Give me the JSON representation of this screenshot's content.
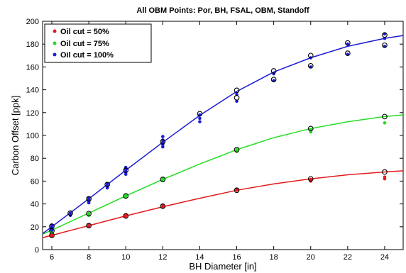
{
  "chart_data": {
    "type": "scatter",
    "title": "All OBM Points: Por, BH, FSAL, OBM, Standoff",
    "xlabel": "BH Diameter [in]",
    "ylabel": "Carbon Offset [ppk]",
    "xlim": [
      5.5,
      25
    ],
    "ylim": [
      0,
      200
    ],
    "xticks": [
      6,
      8,
      10,
      12,
      14,
      16,
      18,
      20,
      22,
      24
    ],
    "yticks": [
      0,
      20,
      40,
      60,
      80,
      100,
      120,
      140,
      160,
      180,
      200
    ],
    "grid": false,
    "legend_position": "top-left",
    "reference_marker": "open black circles",
    "series": [
      {
        "name": "Oil cut = 50%",
        "color": "#e41a1c",
        "points": [
          {
            "x": 6,
            "y": 12
          },
          {
            "x": 6,
            "y": 13
          },
          {
            "x": 8,
            "y": 20
          },
          {
            "x": 8,
            "y": 21.5
          },
          {
            "x": 10,
            "y": 29
          },
          {
            "x": 10,
            "y": 30.5
          },
          {
            "x": 12,
            "y": 37.5
          },
          {
            "x": 12,
            "y": 39
          },
          {
            "x": 16,
            "y": 52
          },
          {
            "x": 16,
            "y": 52.5
          },
          {
            "x": 20,
            "y": 60
          },
          {
            "x": 20,
            "y": 61.5
          },
          {
            "x": 24,
            "y": 62
          },
          {
            "x": 24,
            "y": 63.5
          }
        ],
        "reference": [
          {
            "x": 6,
            "y": 12.5
          },
          {
            "x": 8,
            "y": 21
          },
          {
            "x": 10,
            "y": 29.5
          },
          {
            "x": 12,
            "y": 38
          },
          {
            "x": 16,
            "y": 52
          },
          {
            "x": 20,
            "y": 62
          },
          {
            "x": 24,
            "y": 68
          }
        ],
        "fit": [
          {
            "x": 5.5,
            "y": 10.5
          },
          {
            "x": 6,
            "y": 12.5
          },
          {
            "x": 8,
            "y": 21
          },
          {
            "x": 10,
            "y": 29.5
          },
          {
            "x": 12,
            "y": 37.5
          },
          {
            "x": 14,
            "y": 45
          },
          {
            "x": 16,
            "y": 52
          },
          {
            "x": 18,
            "y": 57.5
          },
          {
            "x": 20,
            "y": 62
          },
          {
            "x": 22,
            "y": 65.5
          },
          {
            "x": 24,
            "y": 68
          },
          {
            "x": 25,
            "y": 69
          }
        ]
      },
      {
        "name": "Oil cut = 75%",
        "color": "#22dd22",
        "points": [
          {
            "x": 6,
            "y": 15
          },
          {
            "x": 6,
            "y": 16.5
          },
          {
            "x": 6,
            "y": 17.5
          },
          {
            "x": 8,
            "y": 30
          },
          {
            "x": 8,
            "y": 31.5
          },
          {
            "x": 10,
            "y": 46
          },
          {
            "x": 10,
            "y": 47.5
          },
          {
            "x": 12,
            "y": 61
          },
          {
            "x": 12,
            "y": 62
          },
          {
            "x": 16,
            "y": 86
          },
          {
            "x": 16,
            "y": 87.5
          },
          {
            "x": 20,
            "y": 103
          },
          {
            "x": 20,
            "y": 105
          },
          {
            "x": 24,
            "y": 111
          }
        ],
        "reference": [
          {
            "x": 6,
            "y": 16.5
          },
          {
            "x": 8,
            "y": 31.5
          },
          {
            "x": 10,
            "y": 47
          },
          {
            "x": 12,
            "y": 61.5
          },
          {
            "x": 16,
            "y": 87.5
          },
          {
            "x": 20,
            "y": 106
          },
          {
            "x": 24,
            "y": 116.5
          }
        ],
        "fit": [
          {
            "x": 5.5,
            "y": 13.5
          },
          {
            "x": 6,
            "y": 17
          },
          {
            "x": 8,
            "y": 32
          },
          {
            "x": 10,
            "y": 47
          },
          {
            "x": 12,
            "y": 61.5
          },
          {
            "x": 14,
            "y": 75
          },
          {
            "x": 16,
            "y": 87.5
          },
          {
            "x": 18,
            "y": 98
          },
          {
            "x": 20,
            "y": 106
          },
          {
            "x": 22,
            "y": 112
          },
          {
            "x": 24,
            "y": 116.5
          },
          {
            "x": 25,
            "y": 118
          }
        ]
      },
      {
        "name": "Oil cut = 100%",
        "color": "#1c1cd6",
        "points": [
          {
            "x": 6,
            "y": 17
          },
          {
            "x": 6,
            "y": 18.5
          },
          {
            "x": 6,
            "y": 20
          },
          {
            "x": 6,
            "y": 21.5
          },
          {
            "x": 7,
            "y": 30
          },
          {
            "x": 7,
            "y": 32
          },
          {
            "x": 8,
            "y": 41
          },
          {
            "x": 8,
            "y": 42.5
          },
          {
            "x": 8,
            "y": 44
          },
          {
            "x": 8,
            "y": 45.5
          },
          {
            "x": 9,
            "y": 54
          },
          {
            "x": 9,
            "y": 56
          },
          {
            "x": 9,
            "y": 57.5
          },
          {
            "x": 10,
            "y": 66
          },
          {
            "x": 10,
            "y": 68
          },
          {
            "x": 10,
            "y": 70
          },
          {
            "x": 10,
            "y": 72
          },
          {
            "x": 12,
            "y": 90
          },
          {
            "x": 12,
            "y": 92
          },
          {
            "x": 12,
            "y": 94
          },
          {
            "x": 12,
            "y": 96
          },
          {
            "x": 12,
            "y": 99
          },
          {
            "x": 14,
            "y": 112
          },
          {
            "x": 14,
            "y": 115
          },
          {
            "x": 14,
            "y": 118
          },
          {
            "x": 16,
            "y": 130
          },
          {
            "x": 16,
            "y": 136
          },
          {
            "x": 18,
            "y": 148
          },
          {
            "x": 18,
            "y": 154
          },
          {
            "x": 20,
            "y": 160
          },
          {
            "x": 20,
            "y": 168
          },
          {
            "x": 22,
            "y": 171
          },
          {
            "x": 22,
            "y": 180
          },
          {
            "x": 24,
            "y": 178
          },
          {
            "x": 24,
            "y": 185
          },
          {
            "x": 24,
            "y": 189
          }
        ],
        "reference": [
          {
            "x": 6,
            "y": 20.5
          },
          {
            "x": 7,
            "y": 32
          },
          {
            "x": 8,
            "y": 44.5
          },
          {
            "x": 9,
            "y": 57
          },
          {
            "x": 10,
            "y": 69.5
          },
          {
            "x": 12,
            "y": 94.5
          },
          {
            "x": 14,
            "y": 119
          },
          {
            "x": 16,
            "y": 139.5
          },
          {
            "x": 16,
            "y": 133
          },
          {
            "x": 18,
            "y": 156.5
          },
          {
            "x": 18,
            "y": 149
          },
          {
            "x": 20,
            "y": 170
          },
          {
            "x": 20,
            "y": 161
          },
          {
            "x": 22,
            "y": 181
          },
          {
            "x": 22,
            "y": 172
          },
          {
            "x": 24,
            "y": 188
          },
          {
            "x": 24,
            "y": 179
          }
        ],
        "fit": [
          {
            "x": 5.5,
            "y": 14
          },
          {
            "x": 6,
            "y": 20
          },
          {
            "x": 8,
            "y": 44.5
          },
          {
            "x": 10,
            "y": 69.5
          },
          {
            "x": 12,
            "y": 94
          },
          {
            "x": 14,
            "y": 117.5
          },
          {
            "x": 16,
            "y": 138.5
          },
          {
            "x": 18,
            "y": 155.5
          },
          {
            "x": 20,
            "y": 168
          },
          {
            "x": 22,
            "y": 178
          },
          {
            "x": 24,
            "y": 185
          },
          {
            "x": 25,
            "y": 187.5
          }
        ]
      }
    ]
  }
}
